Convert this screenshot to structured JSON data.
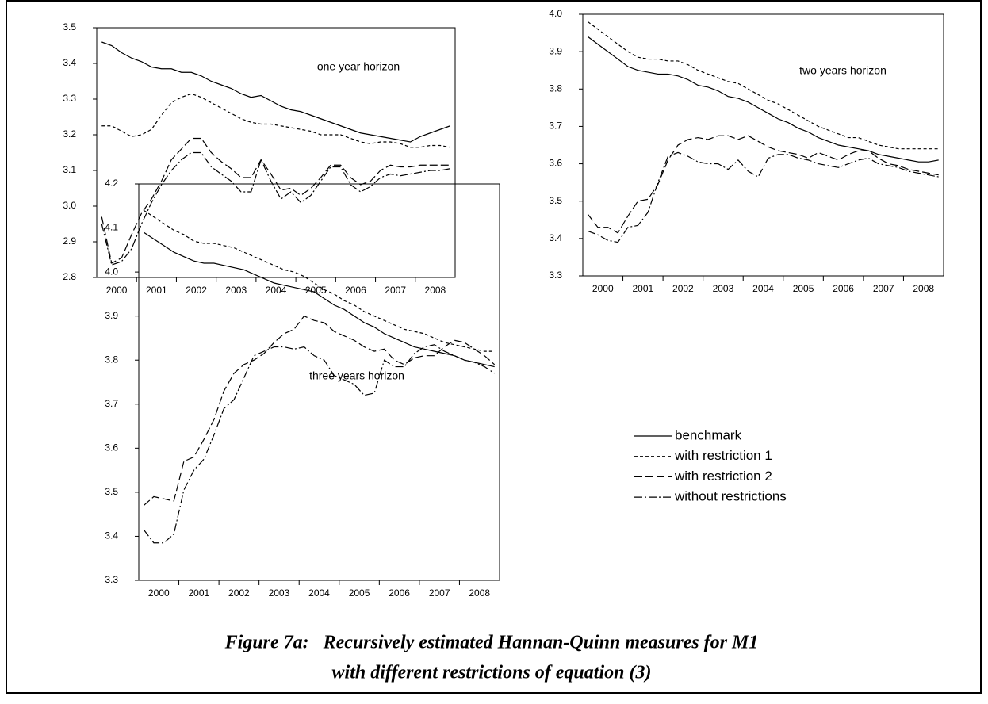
{
  "chart_data": [
    {
      "type": "line",
      "annotation": "one year horizon",
      "categories": [
        "2000",
        null,
        null,
        null,
        "2001",
        null,
        null,
        null,
        "2002",
        null,
        null,
        null,
        "2003",
        null,
        null,
        null,
        "2004",
        null,
        null,
        null,
        "2005",
        null,
        null,
        null,
        "2006",
        null,
        null,
        null,
        "2007",
        null,
        null,
        null,
        "2008",
        null,
        null,
        null
      ],
      "ylim": [
        2.8,
        3.5
      ],
      "yticks": [
        2.8,
        2.9,
        {
          "value": 3.0,
          "label": "3.0"
        },
        3.1,
        3.2,
        3.3,
        3.4,
        3.5
      ],
      "series": [
        {
          "color": "#000000",
          "dash": "solid",
          "values": [
            3.46,
            3.45,
            3.43,
            3.415,
            3.405,
            3.39,
            3.385,
            3.385,
            3.375,
            3.375,
            3.365,
            3.35,
            3.34,
            3.33,
            3.315,
            3.305,
            3.31,
            3.295,
            3.28,
            3.27,
            3.265,
            3.255,
            3.245,
            3.235,
            3.225,
            3.215,
            3.205,
            3.2,
            3.195,
            3.19,
            3.185,
            3.18,
            3.195,
            3.205,
            3.215,
            3.225
          ]
        },
        {
          "color": "#000000",
          "dash": "short",
          "values": [
            3.225,
            3.225,
            3.21,
            3.195,
            3.2,
            3.215,
            3.255,
            3.29,
            3.305,
            3.315,
            3.305,
            3.29,
            3.275,
            3.26,
            3.245,
            3.235,
            3.23,
            3.23,
            3.225,
            3.22,
            3.215,
            3.21,
            3.2,
            3.2,
            3.2,
            3.19,
            3.18,
            3.175,
            3.18,
            3.18,
            3.175,
            3.165,
            3.165,
            3.17,
            3.17,
            3.165
          ]
        },
        {
          "color": "#000000",
          "dash": "long",
          "values": [
            2.97,
            2.84,
            2.855,
            2.92,
            2.98,
            3.02,
            3.07,
            3.13,
            3.16,
            3.19,
            3.19,
            3.15,
            3.125,
            3.105,
            3.08,
            3.08,
            3.13,
            3.09,
            3.045,
            3.05,
            3.03,
            3.05,
            3.08,
            3.115,
            3.115,
            3.08,
            3.06,
            3.07,
            3.1,
            3.115,
            3.11,
            3.11,
            3.115,
            3.115,
            3.115,
            3.115
          ]
        },
        {
          "color": "#000000",
          "dash": "dashdot",
          "values": [
            2.95,
            2.835,
            2.845,
            2.88,
            2.95,
            3.01,
            3.06,
            3.1,
            3.13,
            3.15,
            3.15,
            3.11,
            3.09,
            3.07,
            3.04,
            3.04,
            3.13,
            3.07,
            3.02,
            3.04,
            3.01,
            3.03,
            3.07,
            3.11,
            3.11,
            3.06,
            3.04,
            3.055,
            3.08,
            3.09,
            3.085,
            3.09,
            3.095,
            3.1,
            3.1,
            3.105
          ]
        }
      ]
    },
    {
      "type": "line",
      "annotation": "two years horizon",
      "categories": [
        "2000",
        null,
        null,
        null,
        "2001",
        null,
        null,
        null,
        "2002",
        null,
        null,
        null,
        "2003",
        null,
        null,
        null,
        "2004",
        null,
        null,
        null,
        "2005",
        null,
        null,
        null,
        "2006",
        null,
        null,
        null,
        "2007",
        null,
        null,
        null,
        "2008",
        null,
        null,
        null
      ],
      "ylim": [
        3.3,
        4.0
      ],
      "yticks": [
        3.3,
        3.4,
        3.5,
        3.6,
        3.7,
        3.8,
        3.9,
        {
          "value": 4.0,
          "label": "4.0"
        }
      ],
      "series": [
        {
          "color": "#000000",
          "dash": "solid",
          "values": [
            3.94,
            3.92,
            3.9,
            3.88,
            3.86,
            3.85,
            3.845,
            3.84,
            3.84,
            3.835,
            3.825,
            3.81,
            3.805,
            3.795,
            3.78,
            3.775,
            3.765,
            3.75,
            3.735,
            3.72,
            3.71,
            3.695,
            3.685,
            3.67,
            3.66,
            3.65,
            3.645,
            3.64,
            3.635,
            3.625,
            3.62,
            3.615,
            3.61,
            3.605,
            3.605,
            3.61
          ]
        },
        {
          "color": "#000000",
          "dash": "short",
          "values": [
            3.98,
            3.96,
            3.94,
            3.92,
            3.9,
            3.885,
            3.88,
            3.88,
            3.875,
            3.875,
            3.865,
            3.85,
            3.84,
            3.83,
            3.82,
            3.815,
            3.8,
            3.785,
            3.77,
            3.76,
            3.745,
            3.73,
            3.715,
            3.7,
            3.69,
            3.68,
            3.67,
            3.67,
            3.66,
            3.65,
            3.645,
            3.64,
            3.64,
            3.64,
            3.64,
            3.64
          ]
        },
        {
          "color": "#000000",
          "dash": "long",
          "values": [
            3.465,
            3.43,
            3.43,
            3.415,
            3.46,
            3.5,
            3.505,
            3.545,
            3.61,
            3.65,
            3.665,
            3.67,
            3.665,
            3.675,
            3.675,
            3.665,
            3.675,
            3.66,
            3.645,
            3.635,
            3.63,
            3.625,
            3.615,
            3.63,
            3.62,
            3.61,
            3.625,
            3.635,
            3.635,
            3.615,
            3.6,
            3.595,
            3.585,
            3.58,
            3.575,
            3.57
          ]
        },
        {
          "color": "#000000",
          "dash": "dashdot",
          "values": [
            3.42,
            3.41,
            3.395,
            3.39,
            3.43,
            3.435,
            3.47,
            3.55,
            3.62,
            3.63,
            3.62,
            3.605,
            3.6,
            3.6,
            3.585,
            3.61,
            3.58,
            3.565,
            3.615,
            3.625,
            3.625,
            3.615,
            3.61,
            3.6,
            3.595,
            3.59,
            3.6,
            3.61,
            3.615,
            3.6,
            3.595,
            3.59,
            3.58,
            3.575,
            3.57,
            3.565
          ]
        }
      ]
    },
    {
      "type": "line",
      "annotation": "three years horizon",
      "categories": [
        "2000",
        null,
        null,
        null,
        "2001",
        null,
        null,
        null,
        "2002",
        null,
        null,
        null,
        "2003",
        null,
        null,
        null,
        "2004",
        null,
        null,
        null,
        "2005",
        null,
        null,
        null,
        "2006",
        null,
        null,
        null,
        "2007",
        null,
        null,
        null,
        "2008",
        null,
        null,
        null
      ],
      "ylim": [
        3.3,
        4.2
      ],
      "yticks": [
        3.3,
        3.4,
        3.5,
        3.6,
        3.7,
        3.8,
        3.9,
        {
          "value": 4.0,
          "label": "4.0"
        },
        4.1,
        4.2
      ],
      "series": [
        {
          "name": "benchmark",
          "color": "#000000",
          "dash": "solid",
          "values": [
            4.09,
            4.075,
            4.06,
            4.045,
            4.035,
            4.025,
            4.02,
            4.02,
            4.015,
            4.01,
            4.005,
            3.995,
            3.985,
            3.975,
            3.97,
            3.965,
            3.96,
            3.955,
            3.94,
            3.925,
            3.915,
            3.9,
            3.885,
            3.875,
            3.86,
            3.85,
            3.84,
            3.83,
            3.825,
            3.82,
            3.815,
            3.81,
            3.8,
            3.795,
            3.79,
            3.785
          ]
        },
        {
          "name": "with restriction 1",
          "color": "#000000",
          "dash": "short",
          "values": [
            4.14,
            4.125,
            4.11,
            4.095,
            4.085,
            4.07,
            4.065,
            4.065,
            4.06,
            4.055,
            4.045,
            4.035,
            4.025,
            4.015,
            4.005,
            4.0,
            3.99,
            3.975,
            3.96,
            3.95,
            3.935,
            3.925,
            3.91,
            3.9,
            3.89,
            3.88,
            3.87,
            3.865,
            3.86,
            3.85,
            3.84,
            3.835,
            3.83,
            3.825,
            3.82,
            3.82
          ]
        },
        {
          "name": "with restriction 2",
          "color": "#000000",
          "dash": "long",
          "values": [
            3.47,
            3.49,
            3.485,
            3.48,
            3.57,
            3.58,
            3.62,
            3.665,
            3.73,
            3.77,
            3.79,
            3.8,
            3.815,
            3.84,
            3.86,
            3.87,
            3.9,
            3.89,
            3.885,
            3.865,
            3.855,
            3.845,
            3.83,
            3.82,
            3.825,
            3.8,
            3.79,
            3.805,
            3.81,
            3.81,
            3.83,
            3.845,
            3.84,
            3.825,
            3.81,
            3.79
          ]
        },
        {
          "name": "without restrictions",
          "color": "#000000",
          "dash": "dashdot",
          "values": [
            3.415,
            3.385,
            3.385,
            3.405,
            3.505,
            3.55,
            3.575,
            3.63,
            3.69,
            3.71,
            3.76,
            3.81,
            3.82,
            3.83,
            3.83,
            3.825,
            3.83,
            3.81,
            3.8,
            3.765,
            3.755,
            3.745,
            3.72,
            3.725,
            3.8,
            3.785,
            3.785,
            3.815,
            3.83,
            3.835,
            3.82,
            3.81,
            3.8,
            3.795,
            3.785,
            3.77
          ]
        }
      ]
    }
  ],
  "caption": [
    "Figure 7a:   Recursively estimated Hannan-Quinn measures for M1",
    "with different restrictions of equation (3)"
  ]
}
